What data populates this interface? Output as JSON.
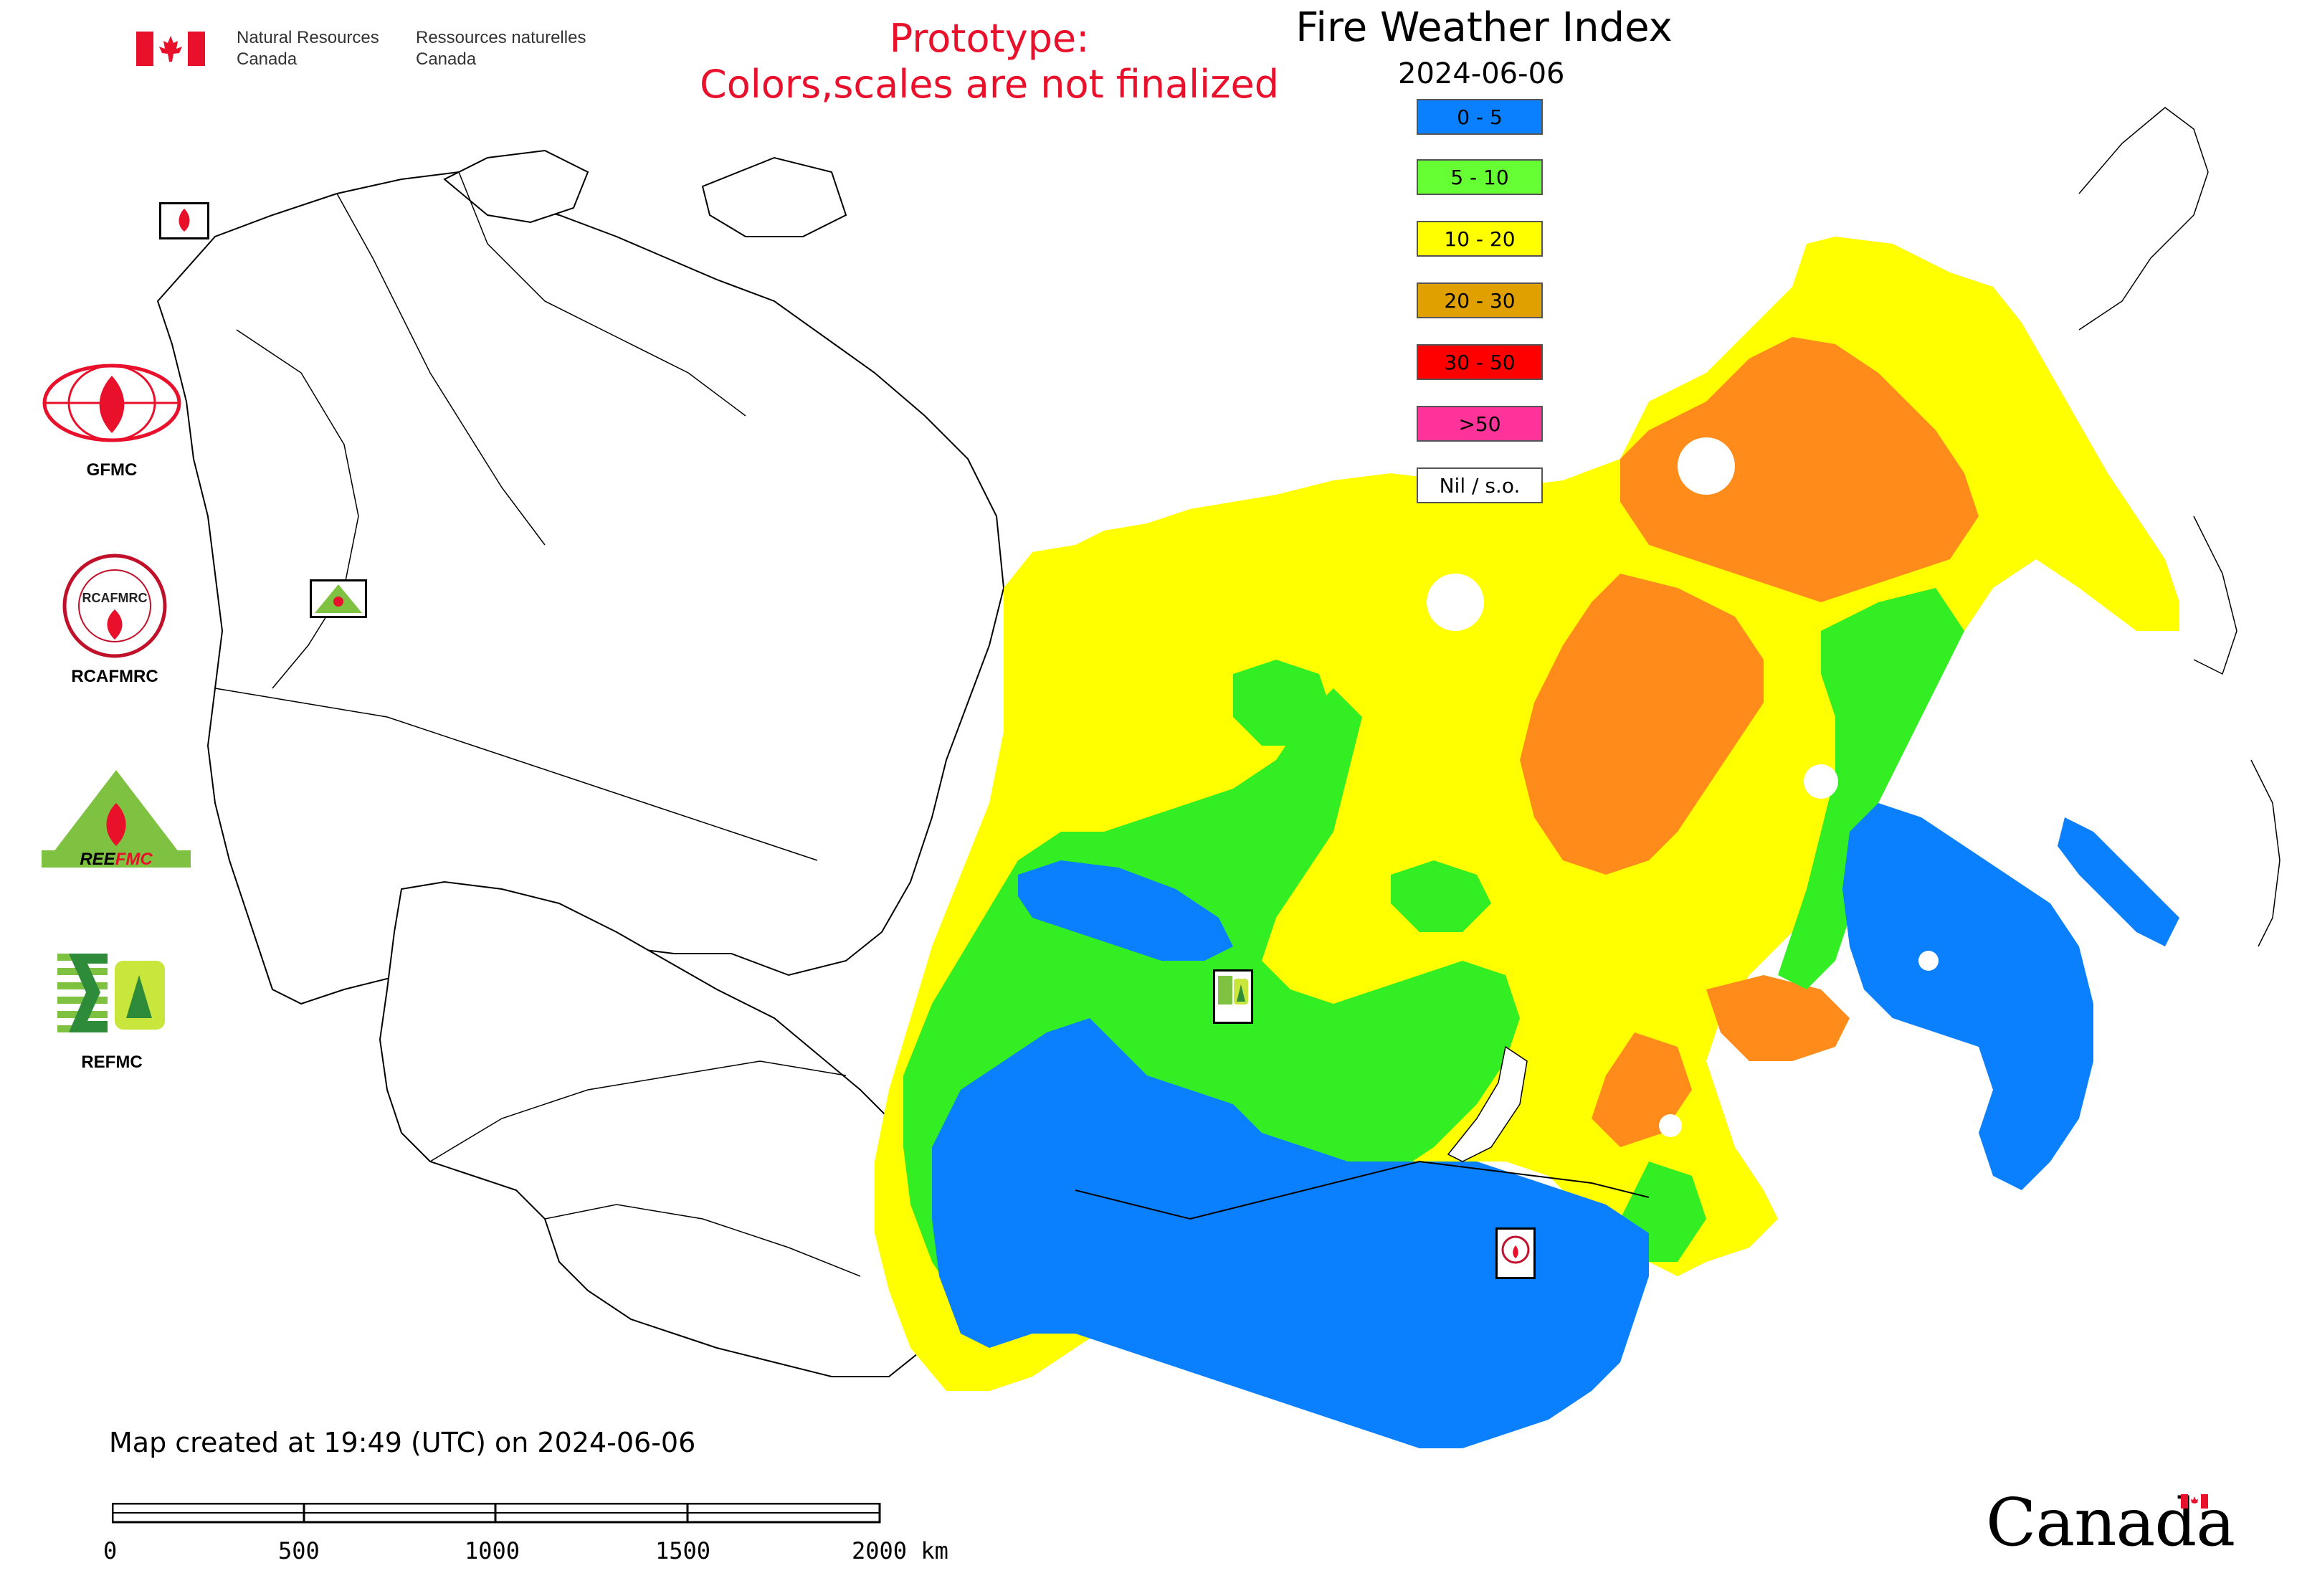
{
  "header": {
    "department_en_line1": "Natural Resources",
    "department_en_line2": "Canada",
    "department_fr_line1": "Ressources naturelles",
    "department_fr_line2": "Canada"
  },
  "prototype_notice": {
    "line1": "Prototype:",
    "line2": "Colors,scales are not finalized"
  },
  "map": {
    "title": "Fire Weather Index",
    "date": "2024-06-06",
    "legend": [
      {
        "label": "0 - 5",
        "color": "#0a80ff"
      },
      {
        "label": "5 - 10",
        "color": "#66ff33"
      },
      {
        "label": "10 - 20",
        "color": "#ffff00"
      },
      {
        "label": "20 - 30",
        "color": "#e0a000"
      },
      {
        "label": "30 - 50",
        "color": "#ff0000"
      },
      {
        "label": ">50",
        "color": "#ff3399"
      },
      {
        "label": "Nil / s.o.",
        "color": "#ffffff"
      }
    ],
    "palette": {
      "blue": "#0a80ff",
      "green": "#33ee22",
      "yellow": "#ffff00",
      "orange": "#ff8c1a",
      "border": "#000000"
    },
    "center_markers": [
      {
        "name": "GFMC",
        "icon": "gfmc-marker-icon"
      },
      {
        "name": "REEFMC",
        "icon": "reefmc-marker-icon"
      },
      {
        "name": "REFMC",
        "icon": "refmc-marker-icon"
      },
      {
        "name": "RCAFMRC",
        "icon": "rcafmrc-marker-icon"
      }
    ]
  },
  "logos": [
    {
      "label": "GFMC",
      "icon": "gfmc-logo-icon",
      "color": "#e8102a"
    },
    {
      "label": "RCAFMRC",
      "icon": "rcafmrc-logo-icon",
      "color": "#c0102a"
    },
    {
      "label": "REEFMC",
      "icon": "reefmc-logo-icon",
      "color": "#7fc241"
    },
    {
      "label": "REFMC",
      "icon": "refmc-logo-icon",
      "color": "#2e8b3a"
    }
  ],
  "footer": {
    "created_text": "Map created at 19:49 (UTC) on 2024-06-06",
    "scale_labels": [
      "0",
      "500",
      "1000",
      "1500",
      "2000 km"
    ],
    "wordmark": "Canada"
  }
}
